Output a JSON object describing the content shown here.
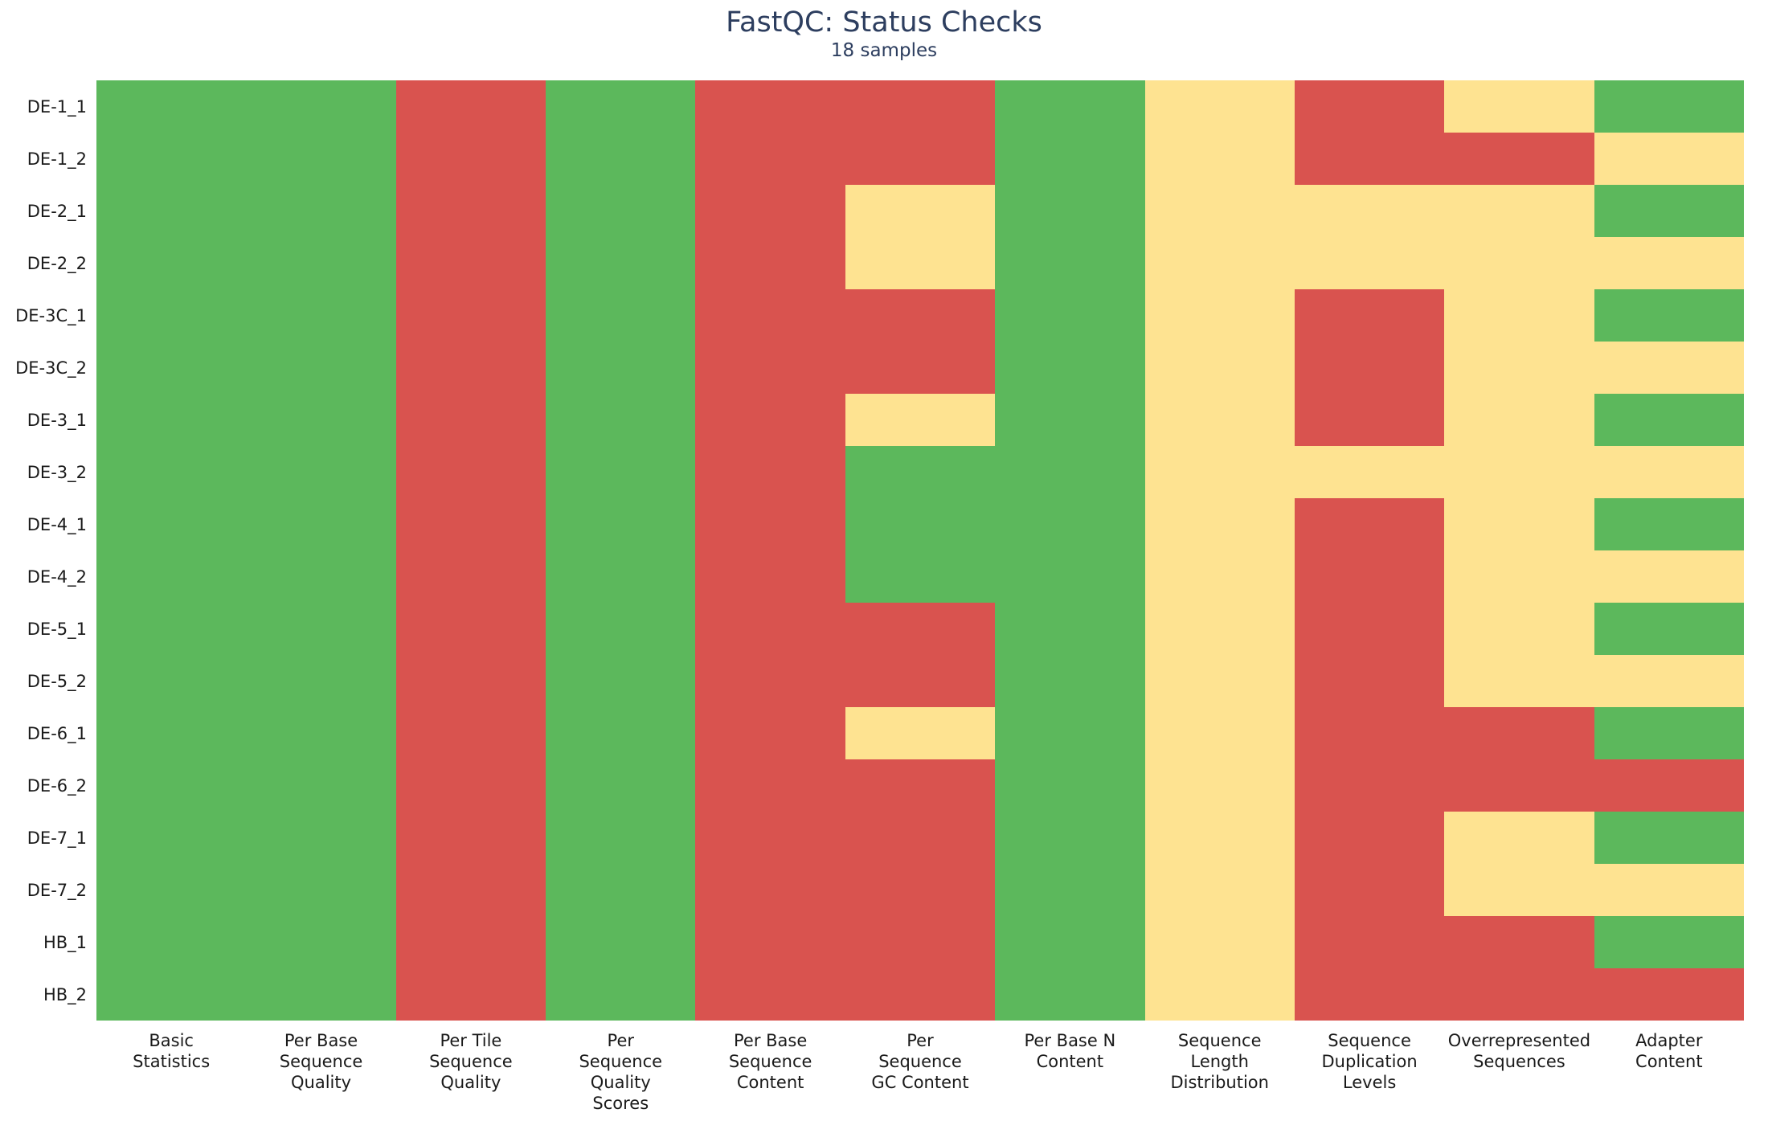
{
  "chart_data": {
    "type": "heatmap",
    "title": "FastQC: Status Checks",
    "subtitle": "18 samples",
    "grid": false,
    "legend_position": "none",
    "title_color": "#2d3e5f",
    "tick_label_color": "#1a1a1a",
    "status_colors": {
      "pass": "#5cb85c",
      "warn": "#fee391",
      "fail": "#d9534f"
    },
    "columns": [
      "Basic\nStatistics",
      "Per Base\nSequence\nQuality",
      "Per Tile\nSequence\nQuality",
      "Per\nSequence\nQuality\nScores",
      "Per Base\nSequence\nContent",
      "Per\nSequence\nGC Content",
      "Per Base N\nContent",
      "Sequence\nLength\nDistribution",
      "Sequence\nDuplication\nLevels",
      "Overrepresented\nSequences",
      "Adapter\nContent"
    ],
    "rows": [
      {
        "sample": "DE-1_1",
        "statuses": [
          "pass",
          "pass",
          "fail",
          "pass",
          "fail",
          "fail",
          "pass",
          "warn",
          "fail",
          "warn",
          "pass"
        ]
      },
      {
        "sample": "DE-1_2",
        "statuses": [
          "pass",
          "pass",
          "fail",
          "pass",
          "fail",
          "fail",
          "pass",
          "warn",
          "fail",
          "fail",
          "warn"
        ]
      },
      {
        "sample": "DE-2_1",
        "statuses": [
          "pass",
          "pass",
          "fail",
          "pass",
          "fail",
          "warn",
          "pass",
          "warn",
          "warn",
          "warn",
          "pass"
        ]
      },
      {
        "sample": "DE-2_2",
        "statuses": [
          "pass",
          "pass",
          "fail",
          "pass",
          "fail",
          "warn",
          "pass",
          "warn",
          "warn",
          "warn",
          "warn"
        ]
      },
      {
        "sample": "DE-3C_1",
        "statuses": [
          "pass",
          "pass",
          "fail",
          "pass",
          "fail",
          "fail",
          "pass",
          "warn",
          "fail",
          "warn",
          "pass"
        ]
      },
      {
        "sample": "DE-3C_2",
        "statuses": [
          "pass",
          "pass",
          "fail",
          "pass",
          "fail",
          "fail",
          "pass",
          "warn",
          "fail",
          "warn",
          "warn"
        ]
      },
      {
        "sample": "DE-3_1",
        "statuses": [
          "pass",
          "pass",
          "fail",
          "pass",
          "fail",
          "warn",
          "pass",
          "warn",
          "fail",
          "warn",
          "pass"
        ]
      },
      {
        "sample": "DE-3_2",
        "statuses": [
          "pass",
          "pass",
          "fail",
          "pass",
          "fail",
          "pass",
          "pass",
          "warn",
          "warn",
          "warn",
          "warn"
        ]
      },
      {
        "sample": "DE-4_1",
        "statuses": [
          "pass",
          "pass",
          "fail",
          "pass",
          "fail",
          "pass",
          "pass",
          "warn",
          "fail",
          "warn",
          "pass"
        ]
      },
      {
        "sample": "DE-4_2",
        "statuses": [
          "pass",
          "pass",
          "fail",
          "pass",
          "fail",
          "pass",
          "pass",
          "warn",
          "fail",
          "warn",
          "warn"
        ]
      },
      {
        "sample": "DE-5_1",
        "statuses": [
          "pass",
          "pass",
          "fail",
          "pass",
          "fail",
          "fail",
          "pass",
          "warn",
          "fail",
          "warn",
          "pass"
        ]
      },
      {
        "sample": "DE-5_2",
        "statuses": [
          "pass",
          "pass",
          "fail",
          "pass",
          "fail",
          "fail",
          "pass",
          "warn",
          "fail",
          "warn",
          "warn"
        ]
      },
      {
        "sample": "DE-6_1",
        "statuses": [
          "pass",
          "pass",
          "fail",
          "pass",
          "fail",
          "warn",
          "pass",
          "warn",
          "fail",
          "fail",
          "pass"
        ]
      },
      {
        "sample": "DE-6_2",
        "statuses": [
          "pass",
          "pass",
          "fail",
          "pass",
          "fail",
          "fail",
          "pass",
          "warn",
          "fail",
          "fail",
          "fail"
        ]
      },
      {
        "sample": "DE-7_1",
        "statuses": [
          "pass",
          "pass",
          "fail",
          "pass",
          "fail",
          "fail",
          "pass",
          "warn",
          "fail",
          "warn",
          "pass"
        ]
      },
      {
        "sample": "DE-7_2",
        "statuses": [
          "pass",
          "pass",
          "fail",
          "pass",
          "fail",
          "fail",
          "pass",
          "warn",
          "fail",
          "warn",
          "warn"
        ]
      },
      {
        "sample": "HB_1",
        "statuses": [
          "pass",
          "pass",
          "fail",
          "pass",
          "fail",
          "fail",
          "pass",
          "warn",
          "fail",
          "fail",
          "pass"
        ]
      },
      {
        "sample": "HB_2",
        "statuses": [
          "pass",
          "pass",
          "fail",
          "pass",
          "fail",
          "fail",
          "pass",
          "warn",
          "fail",
          "fail",
          "fail"
        ]
      }
    ]
  }
}
